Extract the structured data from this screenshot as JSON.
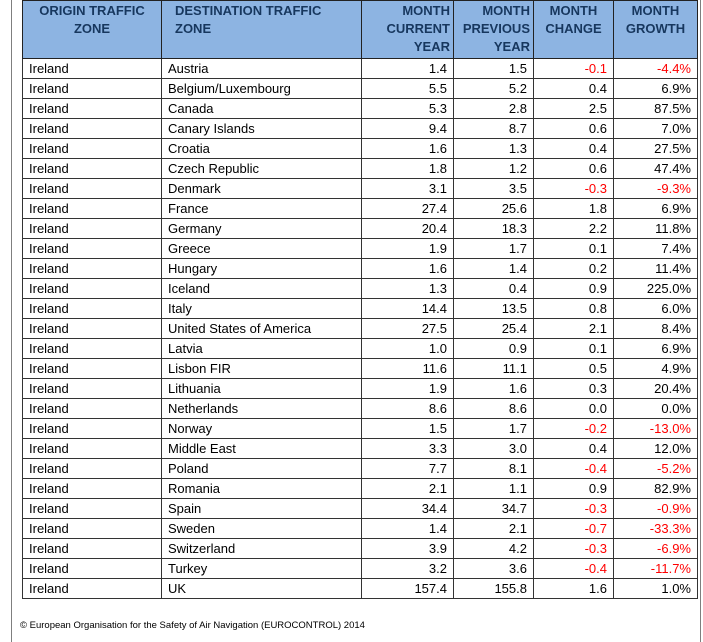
{
  "headers": {
    "origin": "ORIGIN TRAFFIC ZONE",
    "destination": "DESTINATION TRAFFIC ZONE",
    "current": "MONTH CURRENT YEAR",
    "previous": "MONTH PREVIOUS YEAR",
    "change": "MONTH CHANGE",
    "growth": "MONTH GROWTH"
  },
  "colors": {
    "header_bg": "#8db4e2",
    "header_text": "#17375e",
    "negative": "#ff0000"
  },
  "rows": [
    {
      "origin": "Ireland",
      "destination": "Austria",
      "current": "1.4",
      "previous": "1.5",
      "change": "-0.1",
      "growth": "-4.4%"
    },
    {
      "origin": "Ireland",
      "destination": "Belgium/Luxembourg",
      "current": "5.5",
      "previous": "5.2",
      "change": "0.4",
      "growth": "6.9%"
    },
    {
      "origin": "Ireland",
      "destination": "Canada",
      "current": "5.3",
      "previous": "2.8",
      "change": "2.5",
      "growth": "87.5%"
    },
    {
      "origin": "Ireland",
      "destination": "Canary Islands",
      "current": "9.4",
      "previous": "8.7",
      "change": "0.6",
      "growth": "7.0%"
    },
    {
      "origin": "Ireland",
      "destination": "Croatia",
      "current": "1.6",
      "previous": "1.3",
      "change": "0.4",
      "growth": "27.5%"
    },
    {
      "origin": "Ireland",
      "destination": "Czech Republic",
      "current": "1.8",
      "previous": "1.2",
      "change": "0.6",
      "growth": "47.4%"
    },
    {
      "origin": "Ireland",
      "destination": "Denmark",
      "current": "3.1",
      "previous": "3.5",
      "change": "-0.3",
      "growth": "-9.3%"
    },
    {
      "origin": "Ireland",
      "destination": "France",
      "current": "27.4",
      "previous": "25.6",
      "change": "1.8",
      "growth": "6.9%"
    },
    {
      "origin": "Ireland",
      "destination": "Germany",
      "current": "20.4",
      "previous": "18.3",
      "change": "2.2",
      "growth": "11.8%"
    },
    {
      "origin": "Ireland",
      "destination": "Greece",
      "current": "1.9",
      "previous": "1.7",
      "change": "0.1",
      "growth": "7.4%"
    },
    {
      "origin": "Ireland",
      "destination": "Hungary",
      "current": "1.6",
      "previous": "1.4",
      "change": "0.2",
      "growth": "11.4%"
    },
    {
      "origin": "Ireland",
      "destination": "Iceland",
      "current": "1.3",
      "previous": "0.4",
      "change": "0.9",
      "growth": "225.0%"
    },
    {
      "origin": "Ireland",
      "destination": "Italy",
      "current": "14.4",
      "previous": "13.5",
      "change": "0.8",
      "growth": "6.0%"
    },
    {
      "origin": "Ireland",
      "destination": "United States of America",
      "current": "27.5",
      "previous": "25.4",
      "change": "2.1",
      "growth": "8.4%"
    },
    {
      "origin": "Ireland",
      "destination": "Latvia",
      "current": "1.0",
      "previous": "0.9",
      "change": "0.1",
      "growth": "6.9%"
    },
    {
      "origin": "Ireland",
      "destination": "Lisbon FIR",
      "current": "11.6",
      "previous": "11.1",
      "change": "0.5",
      "growth": "4.9%"
    },
    {
      "origin": "Ireland",
      "destination": "Lithuania",
      "current": "1.9",
      "previous": "1.6",
      "change": "0.3",
      "growth": "20.4%"
    },
    {
      "origin": "Ireland",
      "destination": "Netherlands",
      "current": "8.6",
      "previous": "8.6",
      "change": "0.0",
      "growth": "0.0%"
    },
    {
      "origin": "Ireland",
      "destination": "Norway",
      "current": "1.5",
      "previous": "1.7",
      "change": "-0.2",
      "growth": "-13.0%"
    },
    {
      "origin": "Ireland",
      "destination": "Middle East",
      "current": "3.3",
      "previous": "3.0",
      "change": "0.4",
      "growth": "12.0%"
    },
    {
      "origin": "Ireland",
      "destination": "Poland",
      "current": "7.7",
      "previous": "8.1",
      "change": "-0.4",
      "growth": "-5.2%"
    },
    {
      "origin": "Ireland",
      "destination": "Romania",
      "current": "2.1",
      "previous": "1.1",
      "change": "0.9",
      "growth": "82.9%"
    },
    {
      "origin": "Ireland",
      "destination": "Spain",
      "current": "34.4",
      "previous": "34.7",
      "change": "-0.3",
      "growth": "-0.9%"
    },
    {
      "origin": "Ireland",
      "destination": "Sweden",
      "current": "1.4",
      "previous": "2.1",
      "change": "-0.7",
      "growth": "-33.3%"
    },
    {
      "origin": "Ireland",
      "destination": "Switzerland",
      "current": "3.9",
      "previous": "4.2",
      "change": "-0.3",
      "growth": "-6.9%"
    },
    {
      "origin": "Ireland",
      "destination": "Turkey",
      "current": "3.2",
      "previous": "3.6",
      "change": "-0.4",
      "growth": "-11.7%"
    },
    {
      "origin": "Ireland",
      "destination": "UK",
      "current": "157.4",
      "previous": "155.8",
      "change": "1.6",
      "growth": "1.0%"
    }
  ],
  "footer": "© European Organisation for the Safety of Air Navigation (EUROCONTROL) 2014"
}
